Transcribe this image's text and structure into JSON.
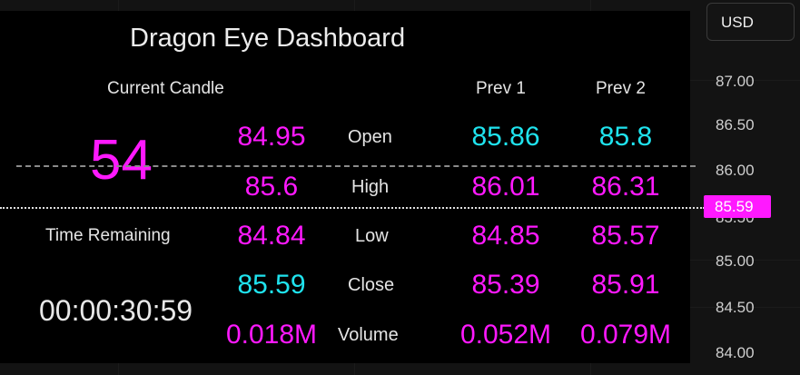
{
  "dashboard": {
    "title": "Dragon Eye Dashboard",
    "current_candle_label": "Current Candle",
    "prev1_label": "Prev 1",
    "prev2_label": "Prev 2",
    "countdown_value": "54",
    "time_remaining_label": "Time Remaining",
    "time_remaining_value": "00:00:30:59",
    "rows": [
      {
        "label": "Open",
        "current": "84.95",
        "prev1": "85.86",
        "prev2": "85.8"
      },
      {
        "label": "High",
        "current": "85.6",
        "prev1": "86.01",
        "prev2": "86.31"
      },
      {
        "label": "Low",
        "current": "84.84",
        "prev1": "84.85",
        "prev2": "85.57"
      },
      {
        "label": "Close",
        "current": "85.59",
        "prev1": "85.39",
        "prev2": "85.91"
      },
      {
        "label": "Volume",
        "current": "0.018M",
        "prev1": "0.052M",
        "prev2": "0.079M"
      }
    ]
  },
  "price_axis": {
    "currency_button": "USD",
    "ticks": [
      "87.00",
      "86.50",
      "86.00",
      "85.50",
      "85.00",
      "84.50",
      "84.00"
    ],
    "current_price_label": "85.59"
  },
  "colors": {
    "magenta": "#ff19ff",
    "cyan": "#1fe3ee",
    "panel_background": "#000000",
    "chart_background": "#131313"
  }
}
